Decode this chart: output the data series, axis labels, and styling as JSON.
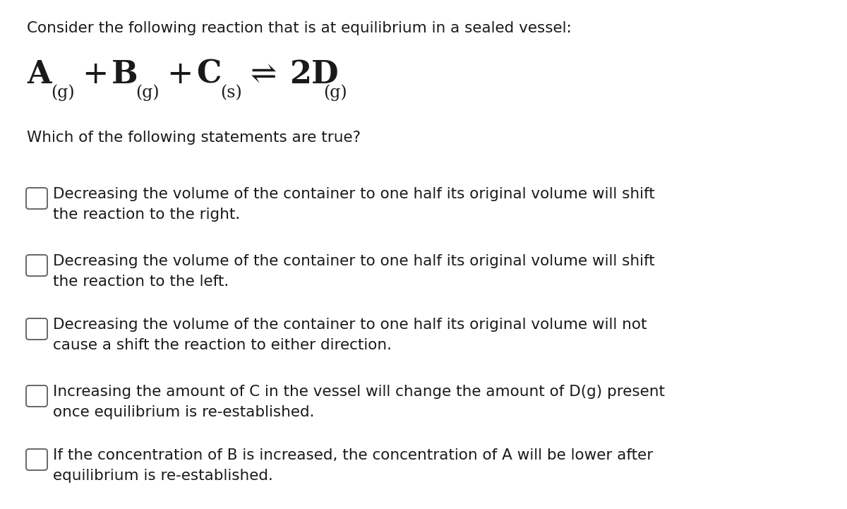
{
  "background_color": "#ffffff",
  "text_color": "#1a1a1a",
  "title_text": "Consider the following reaction that is at equilibrium in a sealed vessel:",
  "title_fontsize": 15.5,
  "question_text": "Which of the following statements are true?",
  "question_fontsize": 15.5,
  "eq_fontsize_main": 32,
  "eq_fontsize_sub": 17,
  "options_fontsize": 15.5,
  "options": [
    "Decreasing the volume of the container to one half its original volume will shift\nthe reaction to the right.",
    "Decreasing the volume of the container to one half its original volume will shift\nthe reaction to the left.",
    "Decreasing the volume of the container to one half its original volume will not\ncause a shift the reaction to either direction.",
    "Increasing the amount of C in the vessel will change the amount of D(g) present\nonce equilibrium is re-established.",
    "If the concentration of B is increased, the concentration of A will be lower after\nequilibrium is re-established."
  ]
}
